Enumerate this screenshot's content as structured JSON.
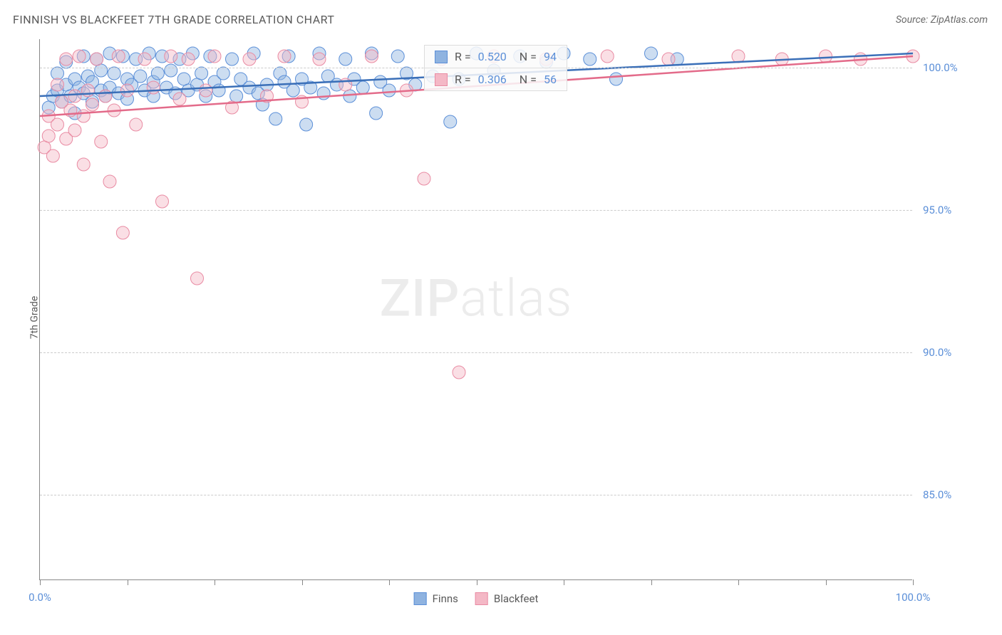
{
  "title": "FINNISH VS BLACKFEET 7TH GRADE CORRELATION CHART",
  "source": "Source: ZipAtlas.com",
  "y_axis_label": "7th Grade",
  "watermark_bold": "ZIP",
  "watermark_light": "atlas",
  "chart": {
    "type": "scatter",
    "background_color": "#ffffff",
    "grid_color": "#cccccc",
    "axis_color": "#888888",
    "tick_label_color": "#5b8fd8",
    "xlim": [
      0,
      100
    ],
    "ylim": [
      82,
      101
    ],
    "x_ticks": [
      0,
      10,
      20,
      30,
      40,
      50,
      60,
      70,
      80,
      90,
      100
    ],
    "x_tick_labels": {
      "0": "0.0%",
      "100": "100.0%"
    },
    "y_ticks": [
      85,
      90,
      95,
      100
    ],
    "y_tick_labels": {
      "85": "85.0%",
      "90": "90.0%",
      "95": "95.0%",
      "100": "100.0%"
    },
    "marker_radius": 9,
    "marker_opacity": 0.45,
    "line_width": 2.5,
    "series": [
      {
        "name": "Finns",
        "fill_color": "#8fb3e0",
        "stroke_color": "#5b8fd8",
        "line_color": "#3a6fb8",
        "r": "0.520",
        "n": "94",
        "trend": {
          "x1": 0,
          "y1": 99.0,
          "x2": 100,
          "y2": 100.5
        },
        "points": [
          [
            1,
            98.6
          ],
          [
            1.5,
            99.0
          ],
          [
            2,
            99.2
          ],
          [
            2,
            99.8
          ],
          [
            2.5,
            98.8
          ],
          [
            3,
            99.4
          ],
          [
            3,
            100.2
          ],
          [
            3.5,
            99.0
          ],
          [
            4,
            99.6
          ],
          [
            4,
            98.4
          ],
          [
            4.5,
            99.3
          ],
          [
            5,
            100.4
          ],
          [
            5,
            99.1
          ],
          [
            5.5,
            99.7
          ],
          [
            6,
            98.8
          ],
          [
            6,
            99.5
          ],
          [
            6.5,
            100.3
          ],
          [
            7,
            99.2
          ],
          [
            7,
            99.9
          ],
          [
            7.5,
            99.0
          ],
          [
            8,
            100.5
          ],
          [
            8,
            99.3
          ],
          [
            8.5,
            99.8
          ],
          [
            9,
            99.1
          ],
          [
            9.5,
            100.4
          ],
          [
            10,
            99.6
          ],
          [
            10,
            98.9
          ],
          [
            10.5,
            99.4
          ],
          [
            11,
            100.3
          ],
          [
            11.5,
            99.7
          ],
          [
            12,
            99.2
          ],
          [
            12.5,
            100.5
          ],
          [
            13,
            99.5
          ],
          [
            13,
            99.0
          ],
          [
            13.5,
            99.8
          ],
          [
            14,
            100.4
          ],
          [
            14.5,
            99.3
          ],
          [
            15,
            99.9
          ],
          [
            15.5,
            99.1
          ],
          [
            16,
            100.3
          ],
          [
            16.5,
            99.6
          ],
          [
            17,
            99.2
          ],
          [
            17.5,
            100.5
          ],
          [
            18,
            99.4
          ],
          [
            18.5,
            99.8
          ],
          [
            19,
            99.0
          ],
          [
            19.5,
            100.4
          ],
          [
            20,
            99.5
          ],
          [
            20.5,
            99.2
          ],
          [
            21,
            99.8
          ],
          [
            22,
            100.3
          ],
          [
            22.5,
            99.0
          ],
          [
            23,
            99.6
          ],
          [
            24,
            99.3
          ],
          [
            24.5,
            100.5
          ],
          [
            25,
            99.1
          ],
          [
            25.5,
            98.7
          ],
          [
            26,
            99.4
          ],
          [
            27,
            98.2
          ],
          [
            27.5,
            99.8
          ],
          [
            28,
            99.5
          ],
          [
            28.5,
            100.4
          ],
          [
            29,
            99.2
          ],
          [
            30,
            99.6
          ],
          [
            30.5,
            98.0
          ],
          [
            31,
            99.3
          ],
          [
            32,
            100.5
          ],
          [
            32.5,
            99.1
          ],
          [
            33,
            99.7
          ],
          [
            34,
            99.4
          ],
          [
            35,
            100.3
          ],
          [
            35.5,
            99.0
          ],
          [
            36,
            99.6
          ],
          [
            37,
            99.3
          ],
          [
            38,
            100.5
          ],
          [
            38.5,
            98.4
          ],
          [
            39,
            99.5
          ],
          [
            40,
            99.2
          ],
          [
            41,
            100.4
          ],
          [
            42,
            99.8
          ],
          [
            43,
            99.4
          ],
          [
            45,
            99.7
          ],
          [
            46,
            100.3
          ],
          [
            47,
            98.1
          ],
          [
            48,
            99.6
          ],
          [
            50,
            100.5
          ],
          [
            52,
            99.9
          ],
          [
            55,
            100.4
          ],
          [
            58,
            100.2
          ],
          [
            60,
            100.5
          ],
          [
            63,
            100.3
          ],
          [
            66,
            99.6
          ],
          [
            70,
            100.5
          ],
          [
            73,
            100.3
          ]
        ]
      },
      {
        "name": "Blackfeet",
        "fill_color": "#f4b8c6",
        "stroke_color": "#e98ba3",
        "line_color": "#e36b8a",
        "r": "0.306",
        "n": "56",
        "trend": {
          "x1": 0,
          "y1": 98.3,
          "x2": 100,
          "y2": 100.4
        },
        "points": [
          [
            0.5,
            97.2
          ],
          [
            1,
            97.6
          ],
          [
            1,
            98.3
          ],
          [
            1.5,
            96.9
          ],
          [
            2,
            98.0
          ],
          [
            2,
            99.4
          ],
          [
            2.5,
            98.8
          ],
          [
            3,
            97.5
          ],
          [
            3,
            100.3
          ],
          [
            3.5,
            98.5
          ],
          [
            4,
            99.0
          ],
          [
            4,
            97.8
          ],
          [
            4.5,
            100.4
          ],
          [
            5,
            98.3
          ],
          [
            5,
            96.6
          ],
          [
            5.5,
            99.2
          ],
          [
            6,
            98.7
          ],
          [
            6.5,
            100.3
          ],
          [
            7,
            97.4
          ],
          [
            7.5,
            99.0
          ],
          [
            8,
            96.0
          ],
          [
            8.5,
            98.5
          ],
          [
            9,
            100.4
          ],
          [
            9.5,
            94.2
          ],
          [
            10,
            99.2
          ],
          [
            11,
            98.0
          ],
          [
            12,
            100.3
          ],
          [
            13,
            99.3
          ],
          [
            14,
            95.3
          ],
          [
            15,
            100.4
          ],
          [
            16,
            98.9
          ],
          [
            17,
            100.3
          ],
          [
            18,
            92.6
          ],
          [
            19,
            99.2
          ],
          [
            20,
            100.4
          ],
          [
            22,
            98.6
          ],
          [
            24,
            100.3
          ],
          [
            26,
            99.0
          ],
          [
            28,
            100.4
          ],
          [
            30,
            98.8
          ],
          [
            32,
            100.3
          ],
          [
            35,
            99.4
          ],
          [
            38,
            100.4
          ],
          [
            42,
            99.2
          ],
          [
            44,
            96.1
          ],
          [
            46,
            100.3
          ],
          [
            48,
            89.3
          ],
          [
            52,
            100.4
          ],
          [
            58,
            100.3
          ],
          [
            65,
            100.4
          ],
          [
            72,
            100.3
          ],
          [
            80,
            100.4
          ],
          [
            85,
            100.3
          ],
          [
            90,
            100.4
          ],
          [
            94,
            100.3
          ],
          [
            100,
            100.4
          ]
        ]
      }
    ],
    "legend": {
      "items": [
        "Finns",
        "Blackfeet"
      ]
    }
  }
}
